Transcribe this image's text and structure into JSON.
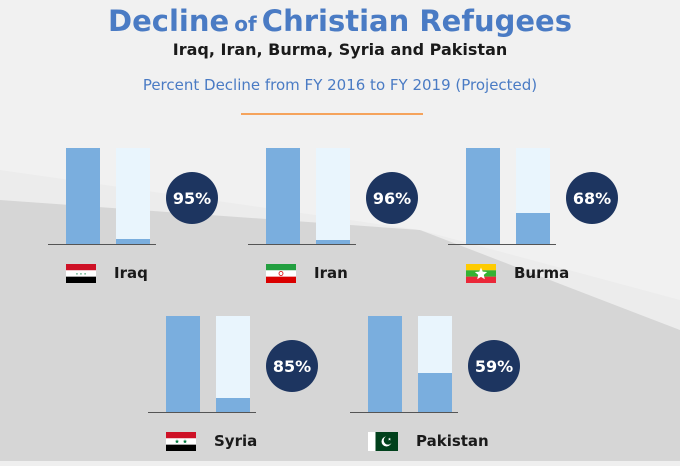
{
  "header": {
    "title_part1": "Decline",
    "title_part2": "of",
    "title_part3": "Christian Refugees",
    "subtitle": "Iraq, Iran, Burma, Syria and Pakistan",
    "description": "Percent Decline from FY 2016 to FY 2019 (Projected)"
  },
  "chart_data": {
    "type": "bar",
    "title": "Decline of Christian Refugees",
    "subtitle": "Iraq, Iran, Burma, Syria and Pakistan",
    "description": "Percent Decline from FY 2016 to FY 2019 (Projected)",
    "categories": [
      "Iraq",
      "Iran",
      "Burma",
      "Syria",
      "Pakistan"
    ],
    "series": [
      {
        "values": [
          100,
          100,
          100,
          100,
          100
        ]
      },
      {
        "values": [
          5,
          4,
          32,
          15,
          41
        ]
      }
    ],
    "percent_decline": [
      "95%",
      "96%",
      "68%",
      "85%",
      "59%"
    ],
    "colors": {
      "fy2016": "#7aaede",
      "fy2019": "#7aaede",
      "bar_track": "#e9f5fd",
      "badge": "#1d3560",
      "accent": "#f5a35c",
      "title": "#4a7bc4"
    }
  },
  "flags": [
    "flag-iraq-icon",
    "flag-iran-icon",
    "flag-burma-icon",
    "flag-syria-icon",
    "flag-pakistan-icon"
  ]
}
